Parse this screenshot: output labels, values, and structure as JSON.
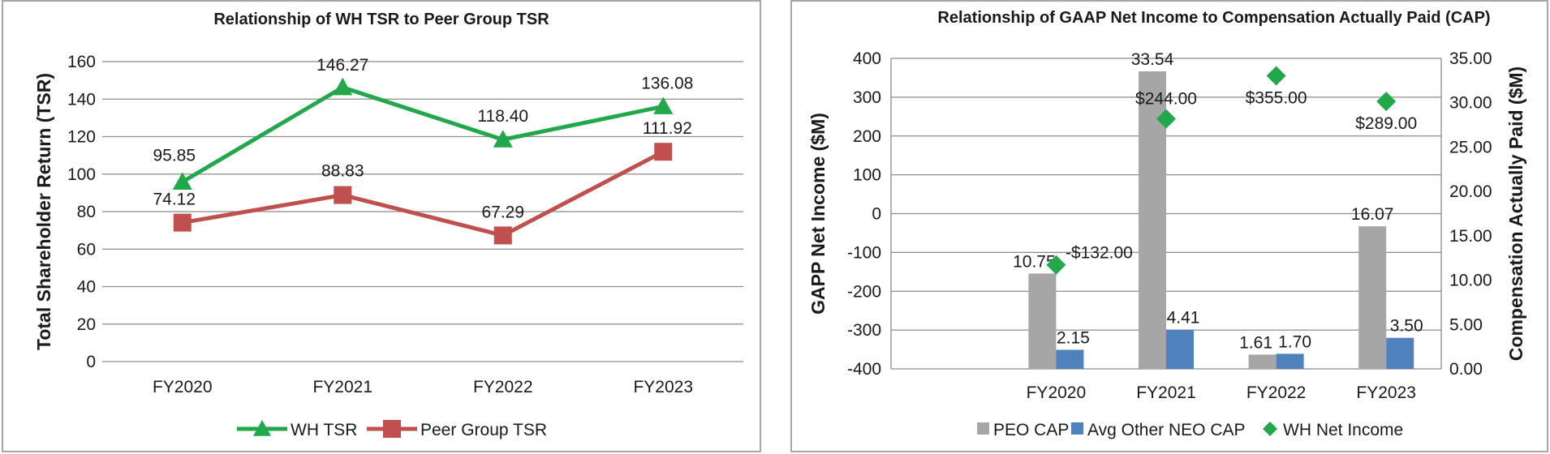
{
  "chart_data": [
    {
      "type": "line",
      "title": "Relationship of WH TSR to Peer Group TSR",
      "ylabel": "Total Shareholder Return (TSR)",
      "xlabel": "",
      "categories": [
        "FY2020",
        "FY2021",
        "FY2022",
        "FY2023"
      ],
      "ylim": [
        0,
        160
      ],
      "yticks": [
        0,
        20,
        40,
        60,
        80,
        100,
        120,
        140,
        160
      ],
      "grid": true,
      "legend_position": "bottom",
      "series": [
        {
          "name": "WH TSR",
          "marker": "triangle",
          "color": "#22a84b",
          "values": [
            95.85,
            146.27,
            118.4,
            136.08
          ],
          "labels": [
            "95.85",
            "146.27",
            "118.40",
            "136.08"
          ]
        },
        {
          "name": "Peer Group TSR",
          "marker": "square",
          "color": "#c0504d",
          "values": [
            74.12,
            88.83,
            67.29,
            111.92
          ],
          "labels": [
            "74.12",
            "88.83",
            "67.29",
            "111.92"
          ]
        }
      ]
    },
    {
      "type": "bar",
      "title": "Relationship of GAAP Net Income to Compensation Actually Paid (CAP)",
      "ylabel": "GAPP Net Income ($M)",
      "y2label": "Compensation Actually Paid ($M)",
      "categories": [
        "FY2020",
        "FY2021",
        "FY2022",
        "FY2023"
      ],
      "ylim": [
        -400,
        400
      ],
      "yticks": [
        -400,
        -300,
        -200,
        -100,
        0,
        100,
        200,
        300,
        400
      ],
      "y2lim": [
        0,
        35
      ],
      "y2ticks": [
        "0.00",
        "5.00",
        "10.00",
        "15.00",
        "20.00",
        "25.00",
        "30.00",
        "35.00"
      ],
      "grid": true,
      "legend_position": "bottom",
      "series": [
        {
          "name": "PEO CAP",
          "type": "bar",
          "axis": "right",
          "color": "#a6a6a6",
          "values": [
            10.75,
            33.54,
            1.61,
            16.07
          ],
          "labels": [
            "10.75",
            "33.54",
            "1.61",
            "16.07"
          ]
        },
        {
          "name": "Avg Other NEO CAP",
          "type": "bar",
          "axis": "right",
          "color": "#4f81bd",
          "values": [
            2.15,
            4.41,
            1.7,
            3.5
          ],
          "labels": [
            "2.15",
            "4.41",
            "1.70",
            "3.50"
          ]
        },
        {
          "name": "WH Net Income",
          "type": "scatter",
          "marker": "diamond",
          "axis": "left",
          "color": "#22a84b",
          "values": [
            -132,
            244,
            355,
            289
          ],
          "labels": [
            "-$132.00",
            "$244.00",
            "$355.00",
            "$289.00"
          ]
        }
      ]
    }
  ]
}
